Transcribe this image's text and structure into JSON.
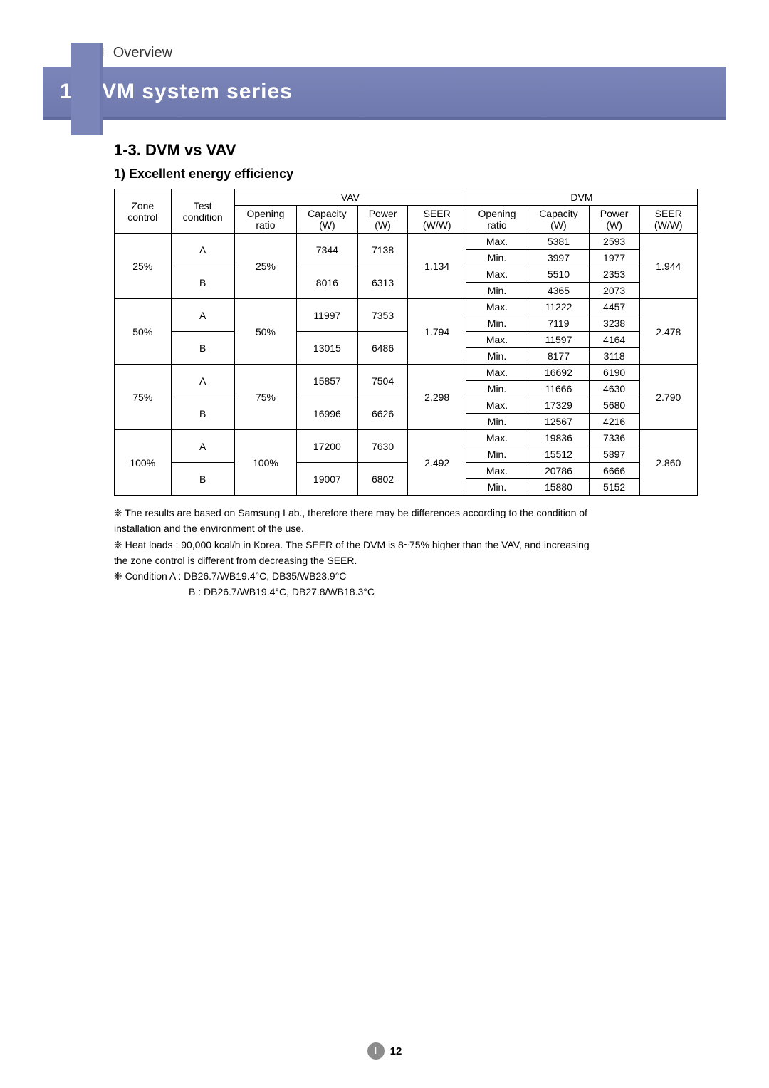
{
  "header": {
    "roman": "Ⅰ",
    "section_label": "Overview",
    "title": "1. DVM system series"
  },
  "subsection": {
    "title": "1-3. DVM vs VAV",
    "bullet": "1) Excellent energy efficiency"
  },
  "table": {
    "group_headers": {
      "zone": "Zone control",
      "test": "Test condition",
      "vav": "VAV",
      "dvm": "DVM"
    },
    "sub_headers": {
      "opening": "Opening ratio",
      "capacity": "Capacity (W)",
      "power": "Power (W)",
      "seer": "SEER (W/W)"
    },
    "groups": [
      {
        "zone": "25%",
        "vav_opening": "25%",
        "vav_seer": "1.134",
        "dvm_seer": "1.944",
        "rows": [
          {
            "cond": "A",
            "vav_cap": "7344",
            "vav_pow": "7138",
            "dvm": [
              {
                "m": "Max.",
                "cap": "5381",
                "pow": "2593"
              },
              {
                "m": "Min.",
                "cap": "3997",
                "pow": "1977"
              }
            ]
          },
          {
            "cond": "B",
            "vav_cap": "8016",
            "vav_pow": "6313",
            "dvm": [
              {
                "m": "Max.",
                "cap": "5510",
                "pow": "2353"
              },
              {
                "m": "Min.",
                "cap": "4365",
                "pow": "2073"
              }
            ]
          }
        ]
      },
      {
        "zone": "50%",
        "vav_opening": "50%",
        "vav_seer": "1.794",
        "dvm_seer": "2.478",
        "rows": [
          {
            "cond": "A",
            "vav_cap": "11997",
            "vav_pow": "7353",
            "dvm": [
              {
                "m": "Max.",
                "cap": "11222",
                "pow": "4457"
              },
              {
                "m": "Min.",
                "cap": "7119",
                "pow": "3238"
              }
            ]
          },
          {
            "cond": "B",
            "vav_cap": "13015",
            "vav_pow": "6486",
            "dvm": [
              {
                "m": "Max.",
                "cap": "11597",
                "pow": "4164"
              },
              {
                "m": "Min.",
                "cap": "8177",
                "pow": "3118"
              }
            ]
          }
        ]
      },
      {
        "zone": "75%",
        "vav_opening": "75%",
        "vav_seer": "2.298",
        "dvm_seer": "2.790",
        "rows": [
          {
            "cond": "A",
            "vav_cap": "15857",
            "vav_pow": "7504",
            "dvm": [
              {
                "m": "Max.",
                "cap": "16692",
                "pow": "6190"
              },
              {
                "m": "Min.",
                "cap": "11666",
                "pow": "4630"
              }
            ]
          },
          {
            "cond": "B",
            "vav_cap": "16996",
            "vav_pow": "6626",
            "dvm": [
              {
                "m": "Max.",
                "cap": "17329",
                "pow": "5680"
              },
              {
                "m": "Min.",
                "cap": "12567",
                "pow": "4216"
              }
            ]
          }
        ]
      },
      {
        "zone": "100%",
        "vav_opening": "100%",
        "vav_seer": "2.492",
        "dvm_seer": "2.860",
        "rows": [
          {
            "cond": "A",
            "vav_cap": "17200",
            "vav_pow": "7630",
            "dvm": [
              {
                "m": "Max.",
                "cap": "19836",
                "pow": "7336"
              },
              {
                "m": "Min.",
                "cap": "15512",
                "pow": "5897"
              }
            ]
          },
          {
            "cond": "B",
            "vav_cap": "19007",
            "vav_pow": "6802",
            "dvm": [
              {
                "m": "Max.",
                "cap": "20786",
                "pow": "6666"
              },
              {
                "m": "Min.",
                "cap": "15880",
                "pow": "5152"
              }
            ]
          }
        ]
      }
    ]
  },
  "notes": {
    "n1a": "❈ The results are based on Samsung Lab., therefore there may be differences according to the condition of",
    "n1b": "installation and the environment of the use.",
    "n2a": "❈ Heat loads : 90,000 kcal/h in Korea. The SEER of the DVM is 8~75% higher than the VAV, and increasing",
    "n2b": "the zone control is different from decreasing the SEER.",
    "n3": "❈ Condition    A : DB26.7/WB19.4°C, DB35/WB23.9°C",
    "n3b": "B : DB26.7/WB19.4°C, DB27.8/WB18.3°C"
  },
  "footer": {
    "roman": "Ⅰ",
    "page": "12"
  }
}
